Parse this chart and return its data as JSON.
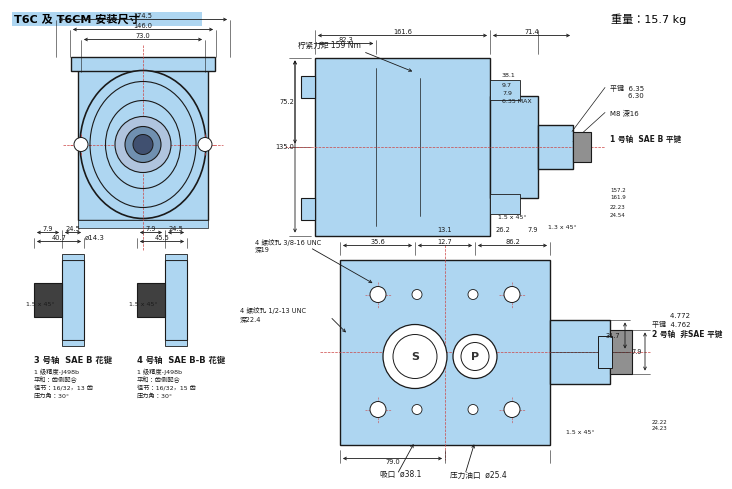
{
  "title": "T6C 及 T6CM 安装尺寸",
  "weight_text": "重量：15.7 kg",
  "bg_color": "#ffffff",
  "body_color": "#aed6f1",
  "line_color": "#1a1a1a",
  "title_bg": "#aed6f1",
  "text_color": "#000000",
  "shaft1_label": "1 号轴  SAE B 平键",
  "shaft2_label": "2 号轴  非SAE 平键",
  "shaft3_label": "3 号轴  SAE B 花键",
  "shaft4_label": "4 号轴  SAE B-B 花键",
  "shaft3_detail1": "1 级精度-J498b",
  "shaft3_detail2": "平和：齿侧配合",
  "shaft3_detail3": "径节：16/32，13 齿",
  "shaft3_detail4": "压力角：30°",
  "shaft4_detail1": "1 级精度-J498b",
  "shaft4_detail2": "平和：齿侧配合",
  "shaft4_detail3": "径节：16/32，15 齿",
  "shaft4_detail4": "压力角：30°",
  "torque_label": "柠紧力矩 159 Nm",
  "port_label1": "吸口  ø38.1",
  "port_label2": "压力油口  ø25.4"
}
